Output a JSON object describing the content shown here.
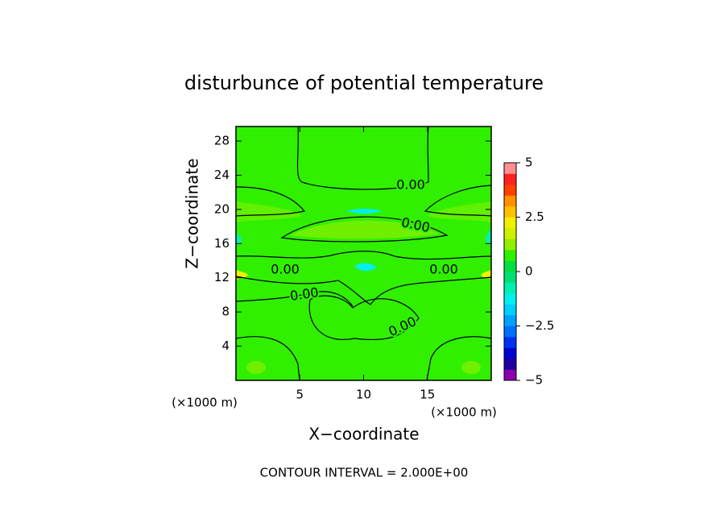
{
  "chart_data": {
    "type": "contour",
    "title": "disturbunce of potential temperature",
    "xlabel": "X−coordinate",
    "ylabel": "Z−coordinate",
    "x_unit": "(×1000 m)",
    "y_unit": "(×1000 m)",
    "xlim": [
      0,
      20
    ],
    "ylim": [
      0,
      29.7
    ],
    "xticks": [
      5,
      10,
      15
    ],
    "yticks": [
      4,
      8,
      12,
      16,
      20,
      24,
      28
    ],
    "contour_labels": [
      "0.00",
      "0.00",
      "0.00",
      "0.00",
      "0.00",
      "0.00"
    ],
    "footer": "CONTOUR INTERVAL = 2.000E+00",
    "colorbar": {
      "lim": [
        -5,
        5
      ],
      "ticks": [
        {
          "value": 5,
          "label": "5"
        },
        {
          "value": 2.5,
          "label": "2.5"
        },
        {
          "value": 0,
          "label": "0"
        },
        {
          "value": -2.5,
          "label": "−2.5"
        },
        {
          "value": -5,
          "label": "−5"
        }
      ],
      "levels": [
        -5,
        -4.5,
        -4,
        -3.5,
        -3,
        -2.5,
        -2,
        -1.5,
        -1,
        -0.5,
        0,
        0.5,
        1,
        1.5,
        2,
        2.5,
        3,
        3.5,
        4,
        4.5,
        5
      ],
      "colors": [
        "#8a00b0",
        "#1e00a0",
        "#0000d0",
        "#0030f0",
        "#0070ff",
        "#00a0ff",
        "#00d0ff",
        "#00f0f0",
        "#00f0b0",
        "#00e070",
        "#00e040",
        "#30f000",
        "#90f000",
        "#d0f000",
        "#f0f000",
        "#ffc000",
        "#ff9000",
        "#ff4000",
        "#ff2020",
        "#ff9090"
      ]
    }
  }
}
